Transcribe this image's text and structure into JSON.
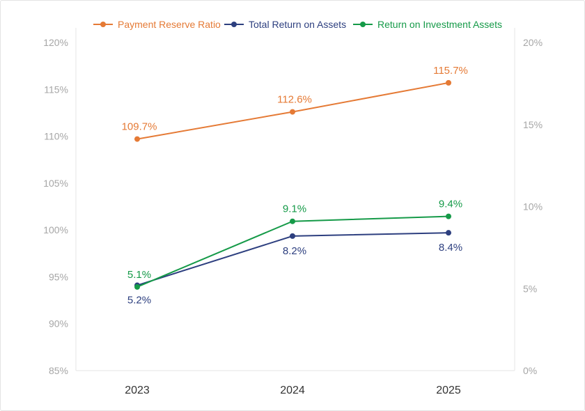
{
  "chart_data": {
    "type": "line",
    "categories": [
      "2023",
      "2024",
      "2025"
    ],
    "legend_position": "top",
    "grid": false,
    "y_left": {
      "range": [
        85,
        120
      ],
      "ticks": [
        "85%",
        "90%",
        "95%",
        "100%",
        "105%",
        "110%",
        "115%",
        "120%"
      ],
      "tick_values": [
        85,
        90,
        95,
        100,
        105,
        110,
        115,
        120
      ]
    },
    "y_right": {
      "range": [
        0,
        20
      ],
      "ticks": [
        "0%",
        "5%",
        "10%",
        "15%",
        "20%"
      ],
      "tick_values": [
        0,
        5,
        10,
        15,
        20
      ]
    },
    "series": [
      {
        "name": "Payment Reserve Ratio",
        "axis": "left",
        "color": "#e57a35",
        "values": [
          109.7,
          112.6,
          115.7
        ],
        "labels": [
          "109.7%",
          "112.6%",
          "115.7%"
        ],
        "label_side": [
          "above",
          "above",
          "above"
        ]
      },
      {
        "name": "Total Return on Assets",
        "axis": "right",
        "color": "#2d3f7f",
        "values": [
          5.2,
          8.2,
          8.4
        ],
        "labels": [
          "5.2%",
          "8.2%",
          "8.4%"
        ],
        "label_side": [
          "below",
          "below",
          "below"
        ]
      },
      {
        "name": "Return on Investment Assets",
        "axis": "right",
        "color": "#159a48",
        "values": [
          5.1,
          9.1,
          9.4
        ],
        "labels": [
          "5.1%",
          "9.1%",
          "9.4%"
        ],
        "label_side": [
          "above",
          "above",
          "above"
        ]
      }
    ]
  }
}
